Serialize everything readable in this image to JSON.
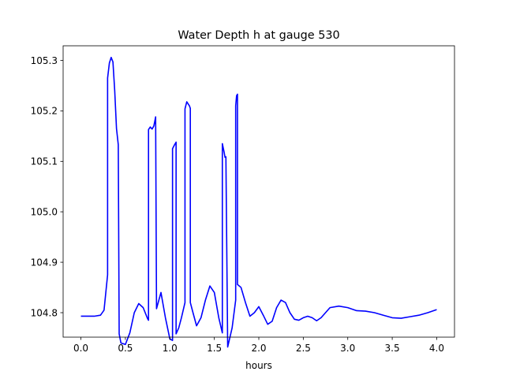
{
  "chart_data": {
    "type": "line",
    "title": "Water Depth h at gauge 530",
    "xlabel": "hours",
    "ylabel": "",
    "xlim": [
      -0.2,
      4.2
    ],
    "ylim": [
      104.7515,
      105.329
    ],
    "x_ticks": [
      0.0,
      0.5,
      1.0,
      1.5,
      2.0,
      2.5,
      3.0,
      3.5,
      4.0
    ],
    "x_tick_labels": [
      "0.0",
      "0.5",
      "1.0",
      "1.5",
      "2.0",
      "2.5",
      "3.0",
      "3.5",
      "4.0"
    ],
    "y_ticks": [
      104.8,
      104.9,
      105.0,
      105.1,
      105.2,
      105.3
    ],
    "y_tick_labels": [
      "104.8",
      "104.9",
      "105.0",
      "105.1",
      "105.2",
      "105.3"
    ],
    "grid": false,
    "series": [
      {
        "color": "#0000ff",
        "x": [
          0.0,
          0.15,
          0.22,
          0.26,
          0.3,
          0.3,
          0.32,
          0.34,
          0.36,
          0.38,
          0.4,
          0.42,
          0.43,
          0.43,
          0.45,
          0.5,
          0.55,
          0.6,
          0.65,
          0.7,
          0.75,
          0.76,
          0.76,
          0.78,
          0.8,
          0.82,
          0.84,
          0.85,
          0.85,
          0.9,
          0.95,
          1.0,
          1.03,
          1.03,
          1.05,
          1.07,
          1.07,
          1.1,
          1.13,
          1.17,
          1.17,
          1.19,
          1.22,
          1.23,
          1.23,
          1.26,
          1.3,
          1.35,
          1.4,
          1.45,
          1.5,
          1.55,
          1.59,
          1.59,
          1.61,
          1.62,
          1.63,
          1.65,
          1.65,
          1.7,
          1.74,
          1.74,
          1.75,
          1.76,
          1.76,
          1.8,
          1.85,
          1.9,
          1.95,
          2.0,
          2.05,
          2.1,
          2.15,
          2.2,
          2.25,
          2.3,
          2.35,
          2.4,
          2.45,
          2.5,
          2.55,
          2.6,
          2.65,
          2.7,
          2.75,
          2.8,
          2.9,
          3.0,
          3.1,
          3.2,
          3.3,
          3.4,
          3.5,
          3.6,
          3.7,
          3.8,
          3.9,
          4.0
        ],
        "y": [
          104.793,
          104.793,
          104.795,
          104.805,
          104.875,
          105.265,
          105.295,
          105.306,
          105.297,
          105.24,
          105.165,
          105.133,
          104.758,
          104.758,
          104.74,
          104.737,
          104.76,
          104.8,
          104.818,
          104.81,
          104.788,
          104.785,
          105.163,
          105.168,
          105.164,
          105.17,
          105.188,
          104.808,
          104.808,
          104.84,
          104.79,
          104.748,
          104.745,
          105.125,
          105.132,
          105.138,
          104.758,
          104.77,
          104.79,
          104.82,
          105.204,
          105.218,
          105.21,
          105.205,
          104.82,
          104.8,
          104.774,
          104.79,
          104.825,
          104.853,
          104.84,
          104.79,
          104.76,
          105.135,
          105.118,
          105.108,
          105.109,
          104.732,
          104.732,
          104.77,
          104.825,
          105.21,
          105.23,
          105.233,
          104.856,
          104.85,
          104.82,
          104.793,
          104.8,
          104.812,
          104.795,
          104.777,
          104.783,
          104.81,
          104.825,
          104.82,
          104.8,
          104.787,
          104.785,
          104.79,
          104.793,
          104.79,
          104.784,
          104.79,
          104.8,
          104.81,
          104.813,
          104.81,
          104.804,
          104.803,
          104.8,
          104.795,
          104.79,
          104.789,
          104.792,
          104.795,
          104.8,
          104.806
        ]
      }
    ]
  }
}
